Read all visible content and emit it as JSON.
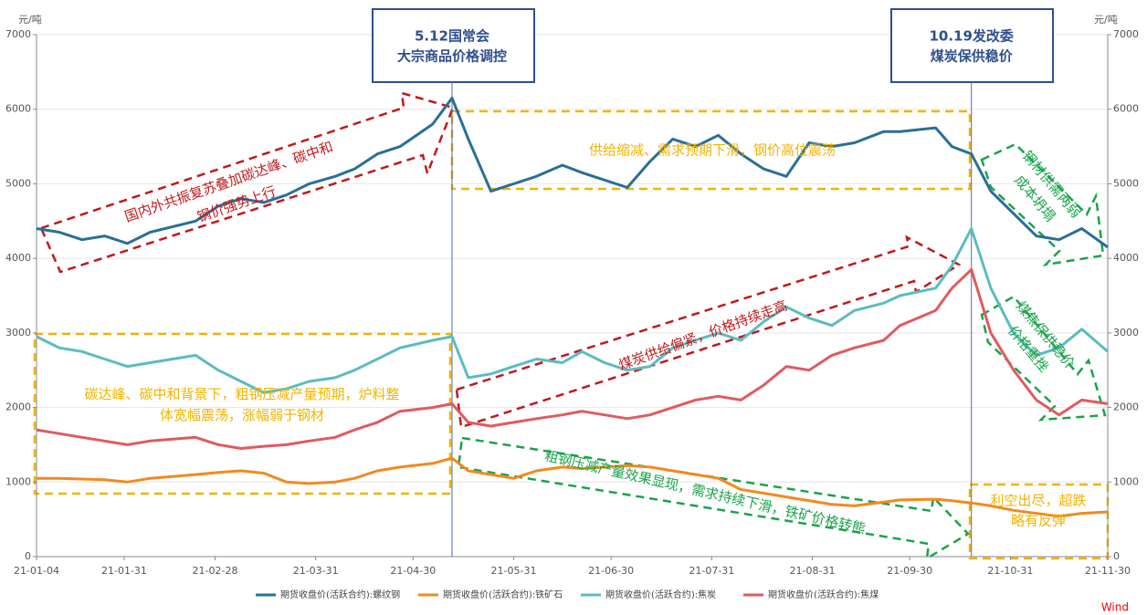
{
  "chart_data": {
    "type": "line",
    "y_unit": "元/吨",
    "y2_unit": "元/吨",
    "source": "Wind",
    "x": [
      "21-01-04",
      "21-01-11",
      "21-01-18",
      "21-01-25",
      "21-02-01",
      "21-02-08",
      "21-02-22",
      "21-03-01",
      "21-03-08",
      "21-03-15",
      "21-03-22",
      "21-03-29",
      "21-04-06",
      "21-04-12",
      "21-04-19",
      "21-04-26",
      "21-05-06",
      "21-05-12",
      "21-05-17",
      "21-05-24",
      "21-05-31",
      "21-06-07",
      "21-06-15",
      "21-06-21",
      "21-06-28",
      "21-07-05",
      "21-07-12",
      "21-07-19",
      "21-07-26",
      "21-08-02",
      "21-08-09",
      "21-08-16",
      "21-08-23",
      "21-08-30",
      "21-09-06",
      "21-09-13",
      "21-09-22",
      "21-09-27",
      "21-10-08",
      "21-10-13",
      "21-10-19",
      "21-10-25",
      "21-11-01",
      "21-11-08",
      "21-11-15",
      "21-11-22",
      "21-11-30"
    ],
    "xlim": [
      "21-01-04",
      "21-11-30"
    ],
    "xticks": [
      "21-01-04",
      "21-01-31",
      "21-02-28",
      "21-03-31",
      "21-04-30",
      "21-05-31",
      "21-06-30",
      "21-07-31",
      "21-08-31",
      "21-09-30",
      "21-10-31",
      "21-11-30"
    ],
    "ylim": [
      0,
      7000
    ],
    "yticks": [
      0,
      1000,
      2000,
      3000,
      4000,
      5000,
      6000,
      7000
    ],
    "y2lim": [
      0,
      7000
    ],
    "y2ticks": [
      0,
      1000,
      2000,
      3000,
      4000,
      5000,
      6000,
      7000
    ],
    "grid": true,
    "series": [
      {
        "name": "期货收盘价(活跃合约):螺纹钢",
        "color": "#2a6f97",
        "values": [
          4400,
          4350,
          4250,
          4300,
          4200,
          4350,
          4500,
          4700,
          4800,
          4750,
          4850,
          5000,
          5100,
          5200,
          5400,
          5500,
          5800,
          6150,
          5600,
          4900,
          5000,
          5100,
          5250,
          5150,
          5050,
          4950,
          5300,
          5600,
          5500,
          5650,
          5400,
          5200,
          5100,
          5550,
          5500,
          5550,
          5700,
          5700,
          5750,
          5500,
          5400,
          4900,
          4600,
          4300,
          4250,
          4400,
          4150
        ]
      },
      {
        "name": "期货收盘价(活跃合约):铁矿石",
        "color": "#f28a1e",
        "values": [
          1050,
          1050,
          1040,
          1030,
          1000,
          1050,
          1100,
          1130,
          1150,
          1120,
          1000,
          980,
          1000,
          1050,
          1150,
          1200,
          1250,
          1320,
          1150,
          1100,
          1050,
          1150,
          1200,
          1180,
          1200,
          1220,
          1200,
          1150,
          1100,
          1050,
          900,
          850,
          800,
          750,
          700,
          680,
          730,
          760,
          770,
          750,
          720,
          680,
          620,
          580,
          540,
          580,
          600
        ]
      },
      {
        "name": "期货收盘价(活跃合约):焦炭",
        "color": "#5bbcc0",
        "values": [
          2950,
          2800,
          2750,
          2650,
          2550,
          2600,
          2700,
          2500,
          2350,
          2200,
          2250,
          2350,
          2400,
          2500,
          2650,
          2800,
          2900,
          2950,
          2400,
          2450,
          2550,
          2650,
          2600,
          2750,
          2600,
          2500,
          2550,
          2800,
          2900,
          3000,
          2900,
          3150,
          3350,
          3200,
          3100,
          3300,
          3400,
          3500,
          3600,
          3900,
          4400,
          3600,
          3000,
          2700,
          2800,
          3050,
          2750
        ]
      },
      {
        "name": "期货收盘价(活跃合约):焦煤",
        "color": "#e05a5f",
        "values": [
          1700,
          1650,
          1600,
          1550,
          1500,
          1550,
          1600,
          1500,
          1450,
          1480,
          1500,
          1550,
          1600,
          1700,
          1800,
          1950,
          2000,
          2050,
          1800,
          1750,
          1800,
          1850,
          1900,
          1950,
          1900,
          1850,
          1900,
          2000,
          2100,
          2150,
          2100,
          2300,
          2550,
          2500,
          2700,
          2800,
          2900,
          3100,
          3300,
          3600,
          3850,
          3000,
          2500,
          2100,
          1900,
          2100,
          2050
        ]
      }
    ],
    "events": [
      {
        "x": "21-05-12",
        "lines": [
          "5.12国常会",
          "大宗商品价格调控"
        ]
      },
      {
        "x": "21-10-19",
        "lines": [
          "10.19发改委",
          "煤炭保供稳价"
        ]
      }
    ],
    "annotations": [
      {
        "color": "#c0191c",
        "lines": [
          "国内外共振复苏叠加碳达峰、碳中和",
          "钢价强势上行"
        ]
      },
      {
        "color": "#f0b400",
        "lines": [
          "供给缩减、需求预期下滑，钢价高位震荡"
        ]
      },
      {
        "color": "#1aa34a",
        "lines": [
          "钢材供需两弱",
          "成本坍塌"
        ]
      },
      {
        "color": "#c0191c",
        "lines": [
          "煤炭供给偏紧，价格持续走高"
        ]
      },
      {
        "color": "#f0b400",
        "lines": [
          "碳达峰、碳中和背景下，粗钢压减产量预期，炉料整",
          "体宽幅震荡，涨幅弱于钢材"
        ]
      },
      {
        "color": "#1aa34a",
        "lines": [
          "粗钢压减产量效果显现，需求持续下滑，铁矿价格转熊"
        ]
      },
      {
        "color": "#1aa34a",
        "lines": [
          "煤焦保供稳价",
          "价格重挫"
        ]
      },
      {
        "color": "#f0b400",
        "lines": [
          "利空出尽，超跌",
          "略有反弹"
        ]
      }
    ]
  }
}
